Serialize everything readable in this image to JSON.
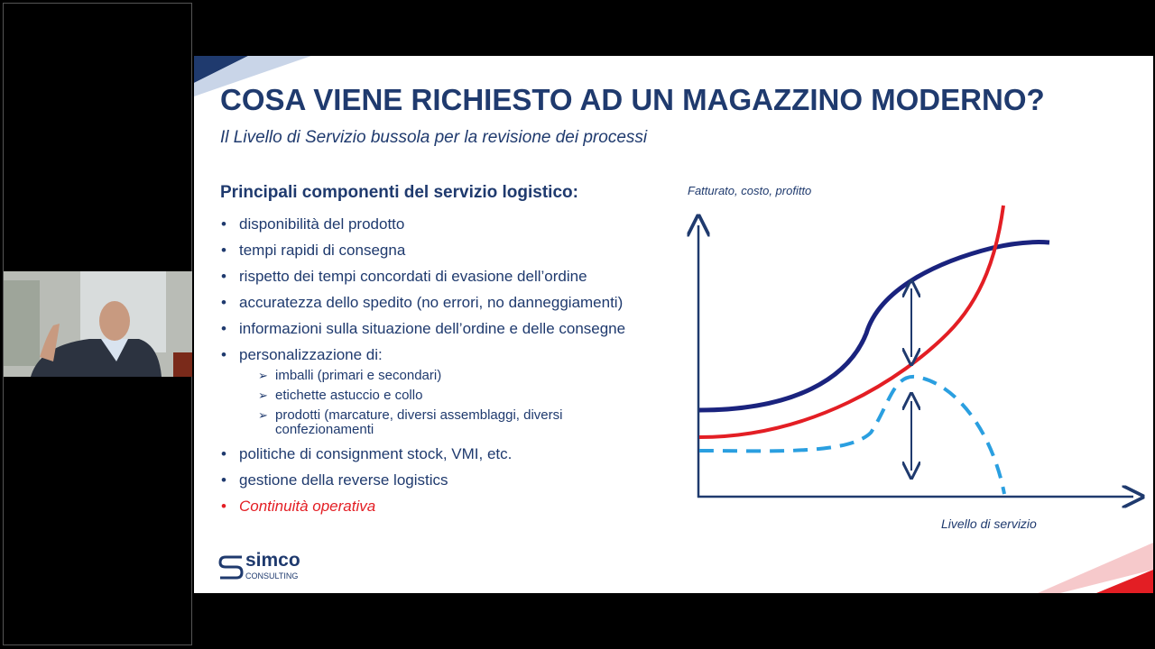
{
  "slide": {
    "title": "COSA VIENE RICHIESTO AD UN MAGAZZINO MODERNO?",
    "subtitle": "Il Livello di Servizio bussola per la revisione dei processi",
    "heading": "Principali componenti del servizio logistico:",
    "bullets": [
      "disponibilità del prodotto",
      "tempi rapidi di consegna",
      "rispetto dei tempi concordati di evasione dell’ordine",
      "accuratezza dello spedito (no errori, no danneggiamenti)",
      "informazioni sulla situazione dell’ordine e delle consegne",
      "personalizzazione di:"
    ],
    "sub_bullets": [
      "imballi (primari e secondari)",
      "etichette astuccio e collo",
      "prodotti (marcature, diversi assemblaggi, diversi",
      "confezionamenti"
    ],
    "bullets_after": [
      "politiche di consignment stock, VMI, etc.",
      "gestione della reverse logistics"
    ],
    "highlight": "Continuità operativa",
    "diagram": {
      "y_label": "Fatturato, costo, profitto",
      "x_label": "Livello di servizio"
    },
    "logo": {
      "name": "simco",
      "tagline": "CONSULTING"
    }
  }
}
